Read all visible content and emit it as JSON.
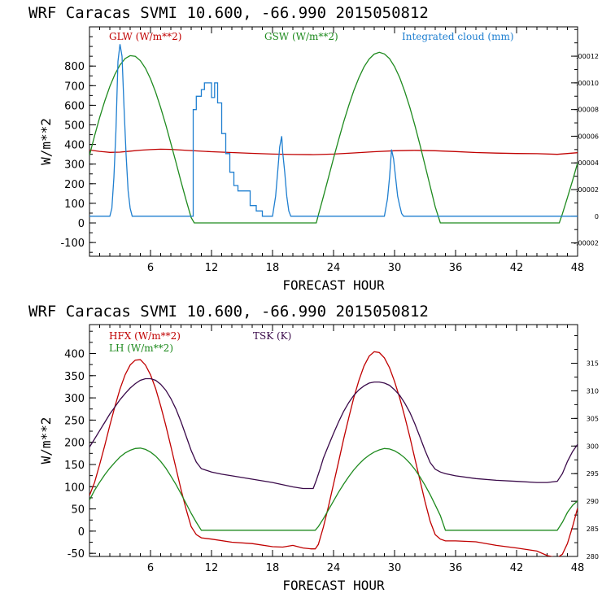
{
  "chart_data": [
    {
      "type": "line",
      "title": "WRF  Caracas SVMI  10.600, -66.990  2015050812",
      "xlabel": "FORECAST HOUR",
      "ylabel": "W/m**2",
      "xlim": [
        0,
        48
      ],
      "ylim": [
        -170,
        1000
      ],
      "x_ticks": [
        6,
        12,
        18,
        24,
        30,
        36,
        42,
        48
      ],
      "y_ticks": [
        -100,
        0,
        100,
        200,
        300,
        400,
        500,
        600,
        700,
        800
      ],
      "y2lim": [
        -3e-05,
        0.000142
      ],
      "y2_ticks": [
        -2e-05,
        0,
        2e-05,
        4e-05,
        6e-05,
        8e-05,
        0.0001,
        0.00012
      ],
      "y2_tick_labels": [
        "-.00002",
        "0",
        ".00002",
        ".00004",
        ".00006",
        ".00008",
        ".00010",
        ".00012"
      ],
      "series": [
        {
          "name": "GLW (W/m**2)",
          "color": "#c00000",
          "axis": "left",
          "x": [
            0,
            1,
            2,
            3,
            4,
            5,
            6,
            7,
            8,
            9,
            10,
            12,
            14,
            16,
            18,
            20,
            22,
            24,
            26,
            28,
            30,
            32,
            34,
            36,
            38,
            40,
            42,
            44,
            46,
            48
          ],
          "y": [
            372,
            365,
            360,
            361,
            366,
            371,
            374,
            376,
            375,
            372,
            369,
            363,
            359,
            355,
            351,
            349,
            348,
            351,
            357,
            363,
            368,
            370,
            368,
            364,
            359,
            356,
            354,
            353,
            350,
            358
          ]
        },
        {
          "name": "GSW (W/m**2)",
          "color": "#1e8a1e",
          "axis": "left",
          "x": [
            0,
            0.5,
            1,
            1.5,
            2,
            2.5,
            3,
            3.5,
            4,
            4.5,
            5,
            5.5,
            6,
            6.5,
            7,
            7.5,
            8,
            8.5,
            9,
            9.5,
            10,
            10.3,
            22.3,
            22.5,
            23,
            23.5,
            24,
            24.5,
            25,
            25.5,
            26,
            26.5,
            27,
            27.5,
            28,
            28.5,
            29,
            29.5,
            30,
            30.5,
            31,
            31.5,
            32,
            32.5,
            33,
            33.5,
            34,
            34.5,
            34.7,
            46.2,
            46.5,
            47,
            47.5,
            48
          ],
          "y": [
            345,
            445,
            538,
            622,
            696,
            758,
            806,
            838,
            853,
            850,
            828,
            789,
            735,
            667,
            588,
            500,
            406,
            309,
            211,
            116,
            27,
            0,
            0,
            40,
            134,
            232,
            330,
            425,
            516,
            600,
            676,
            742,
            796,
            836,
            861,
            870,
            862,
            838,
            797,
            741,
            671,
            589,
            497,
            397,
            293,
            187,
            82,
            0,
            0,
            0,
            46,
            129,
            216,
            306
          ]
        },
        {
          "name": "Integrated cloud (mm)",
          "color": "#1f7fd0",
          "axis": "right",
          "x": [
            0,
            2.0,
            2.2,
            2.4,
            2.6,
            2.8,
            3.0,
            3.2,
            3.4,
            3.6,
            3.8,
            4.0,
            4.2,
            4.4,
            10.2,
            10.2,
            10.5,
            10.5,
            11.0,
            11.0,
            11.3,
            11.3,
            11.6,
            11.6,
            12.0,
            12.0,
            12.3,
            12.3,
            12.6,
            12.6,
            13.0,
            13.0,
            13.4,
            13.4,
            13.8,
            13.8,
            14.2,
            14.2,
            14.6,
            14.6,
            15.2,
            15.2,
            15.8,
            15.8,
            16.4,
            16.4,
            17.0,
            17.0,
            18.0,
            18.3,
            18.5,
            18.7,
            18.9,
            19.0,
            19.2,
            19.4,
            19.6,
            19.8,
            20.0,
            29.0,
            29.3,
            29.5,
            29.7,
            29.9,
            30.1,
            30.3,
            30.5,
            30.7,
            30.9,
            48
          ],
          "y": [
            0,
            0,
            6e-06,
            2.9e-05,
            6.4e-05,
            0.000116,
            0.000129,
            0.00012,
            8.1e-05,
            4.6e-05,
            1.9e-05,
            6e-06,
            0,
            0,
            0,
            8e-05,
            8e-05,
            9e-05,
            9e-05,
            9.5e-05,
            9.5e-05,
            0.0001,
            0.0001,
            0.0001,
            0.0001,
            8.9e-05,
            8.9e-05,
            0.0001,
            0.0001,
            8.5e-05,
            8.5e-05,
            6.2e-05,
            6.2e-05,
            4.7e-05,
            4.7e-05,
            3.3e-05,
            3.3e-05,
            2.3e-05,
            2.3e-05,
            1.9e-05,
            1.9e-05,
            1.9e-05,
            1.9e-05,
            8e-06,
            8e-06,
            4e-06,
            4e-06,
            0,
            0,
            1.5e-05,
            3.3e-05,
            5.2e-05,
            6e-05,
            4.8e-05,
            3.3e-05,
            1.5e-05,
            4e-06,
            0,
            0,
            0,
            1.3e-05,
            2.9e-05,
            5e-05,
            4.3e-05,
            2.9e-05,
            1.5e-05,
            8e-06,
            2e-06,
            0,
            0
          ]
        }
      ]
    },
    {
      "type": "line",
      "title": "WRF  Caracas SVMI  10.600, -66.990  2015050812",
      "xlabel": "FORECAST HOUR",
      "ylabel": "W/m**2",
      "xlim": [
        0,
        48
      ],
      "ylim": [
        -57,
        465
      ],
      "x_ticks": [
        6,
        12,
        18,
        24,
        30,
        36,
        42,
        48
      ],
      "y_ticks": [
        -50,
        0,
        50,
        100,
        150,
        200,
        250,
        300,
        350,
        400
      ],
      "y2lim": [
        280,
        322
      ],
      "y2_ticks": [
        280,
        285,
        290,
        295,
        300,
        305,
        310,
        315
      ],
      "y2_tick_labels": [
        "280",
        "285",
        "290",
        "295",
        "300",
        "305",
        "310",
        "315"
      ],
      "series": [
        {
          "name": "HFX (W/m**2)",
          "color": "#c00000",
          "axis": "left",
          "x": [
            0,
            0.5,
            1,
            1.5,
            2,
            2.5,
            3,
            3.5,
            4,
            4.5,
            5,
            5.5,
            6,
            6.5,
            7,
            7.5,
            8,
            8.5,
            9,
            9.5,
            10,
            10.5,
            11,
            12,
            14,
            16,
            18,
            19,
            20,
            21,
            21.8,
            22.2,
            22.5,
            23,
            23.5,
            24,
            24.5,
            25,
            25.5,
            26,
            26.5,
            27,
            27.5,
            28,
            28.5,
            29,
            29.5,
            30,
            30.5,
            31,
            31.5,
            32,
            32.5,
            33,
            33.5,
            34,
            34.5,
            35,
            36,
            38,
            40,
            42,
            44,
            45,
            46,
            46.5,
            47,
            47.5,
            48
          ],
          "y": [
            80,
            110,
            150,
            193,
            238,
            281,
            320,
            352,
            374,
            385,
            386,
            374,
            352,
            321,
            282,
            238,
            191,
            142,
            94,
            49,
            10,
            -8,
            -15,
            -18,
            -25,
            -28,
            -35,
            -36,
            -32,
            -38,
            -40,
            -40,
            -30,
            9,
            56,
            106,
            157,
            208,
            256,
            301,
            340,
            372,
            394,
            404,
            402,
            390,
            368,
            337,
            300,
            258,
            212,
            163,
            114,
            66,
            22,
            -8,
            -18,
            -22,
            -22,
            -24,
            -32,
            -38,
            -45,
            -55,
            -60,
            -52,
            -28,
            10,
            52
          ]
        },
        {
          "name": "LH (W/m**2)",
          "color": "#1e8a1e",
          "axis": "left",
          "x": [
            0,
            0.5,
            1,
            1.5,
            2,
            2.5,
            3,
            3.5,
            4,
            4.5,
            5,
            5.5,
            6,
            6.5,
            7,
            7.5,
            8,
            8.5,
            9,
            9.5,
            10,
            10.5,
            11,
            22.2,
            22.5,
            23,
            23.5,
            24,
            24.5,
            25,
            25.5,
            26,
            26.5,
            27,
            27.5,
            28,
            28.5,
            29,
            29.5,
            30,
            30.5,
            31,
            31.5,
            32,
            32.5,
            33,
            33.5,
            34,
            34.5,
            35,
            46,
            46.5,
            47,
            47.5,
            48
          ],
          "y": [
            70,
            92,
            110,
            127,
            142,
            155,
            167,
            176,
            182,
            186,
            187,
            184,
            178,
            169,
            157,
            142,
            124,
            105,
            84,
            62,
            40,
            20,
            2,
            2,
            10,
            28,
            48,
            68,
            88,
            106,
            123,
            138,
            151,
            162,
            171,
            178,
            183,
            186,
            185,
            181,
            174,
            165,
            153,
            139,
            122,
            103,
            82,
            59,
            35,
            2,
            2,
            20,
            42,
            58,
            68
          ]
        },
        {
          "name": "TSK (K)",
          "color": "#3a0a4a",
          "axis": "right",
          "x": [
            0,
            0.5,
            1,
            1.5,
            2,
            2.5,
            3,
            3.5,
            4,
            4.5,
            5,
            5.5,
            6,
            6.5,
            7,
            7.5,
            8,
            8.5,
            9,
            9.5,
            10,
            10.5,
            11,
            12,
            13,
            14,
            16,
            18,
            20,
            21,
            22,
            22.3,
            22.7,
            23,
            23.5,
            24,
            24.5,
            25,
            25.5,
            26,
            26.5,
            27,
            27.5,
            28,
            28.5,
            29,
            29.5,
            30,
            30.5,
            31,
            31.5,
            32,
            32.5,
            33,
            33.5,
            34,
            34.5,
            35,
            36,
            38,
            40,
            42,
            44,
            45,
            46,
            46.5,
            47,
            47.5,
            48
          ],
          "y": [
            299.8,
            301.3,
            302.8,
            304.3,
            305.8,
            307.1,
            308.4,
            309.5,
            310.5,
            311.3,
            311.9,
            312.2,
            312.2,
            311.9,
            311.2,
            310.1,
            308.6,
            306.7,
            304.4,
            301.8,
            299.2,
            297.1,
            295.9,
            295.3,
            294.9,
            294.6,
            294.0,
            293.4,
            292.6,
            292.3,
            292.3,
            293.8,
            296.0,
            297.8,
            300.1,
            302.3,
            304.4,
            306.3,
            307.9,
            309.2,
            310.2,
            310.9,
            311.4,
            311.6,
            311.6,
            311.4,
            311.0,
            310.2,
            309.2,
            307.8,
            306.1,
            304.0,
            301.6,
            299.2,
            297.0,
            295.8,
            295.3,
            295.0,
            294.6,
            294.1,
            293.8,
            293.6,
            293.4,
            293.4,
            293.6,
            295.0,
            297.2,
            299.0,
            300.3
          ]
        }
      ]
    }
  ]
}
